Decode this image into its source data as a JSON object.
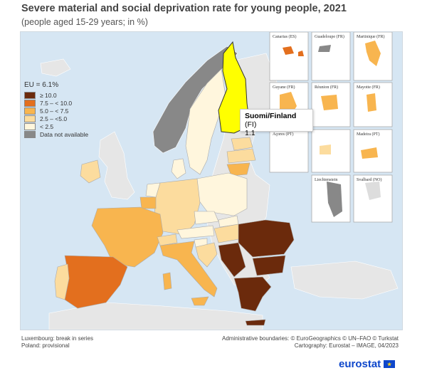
{
  "title": "Severe material and social deprivation rate for young people, 2021",
  "subtitle": "(people aged 15-29 years; in %)",
  "legend": {
    "title": "EU = 6.1%",
    "items": [
      {
        "label": "≥ 10.0",
        "color": "#6b2a0c"
      },
      {
        "label": "7.5 – < 10.0",
        "color": "#e36f1e"
      },
      {
        "label": "5.0 – < 7.5",
        "color": "#f8b54f"
      },
      {
        "label": "2.5 – <5.0",
        "color": "#fcdc9e"
      },
      {
        "label": "< 2.5",
        "color": "#fff6dd"
      },
      {
        "label": "Data not available",
        "color": "#888888"
      }
    ]
  },
  "tooltip": {
    "country_native": "Suomi/Finland",
    "code": "(FI)",
    "value": "1.1"
  },
  "insets": [
    "Canarias (ES)",
    "Guadeloupe (FR)",
    "Martinique (FR)",
    "Guyane (FR)",
    "Réunion (FR)",
    "Mayotte (FR)",
    "Açores (PT)",
    "Madeira (PT)",
    "Liechtenstein",
    "Svalbard (NO)"
  ],
  "footer": {
    "left_1": "Luxembourg: break in series",
    "left_2": "Poland: provisional",
    "right_1": "Administrative boundaries: © EuroGeographics © UN–FAO © Turkstat",
    "right_2": "Cartography: Eurostat – IMAGE, 04/2023"
  },
  "logo": "eurostat"
}
